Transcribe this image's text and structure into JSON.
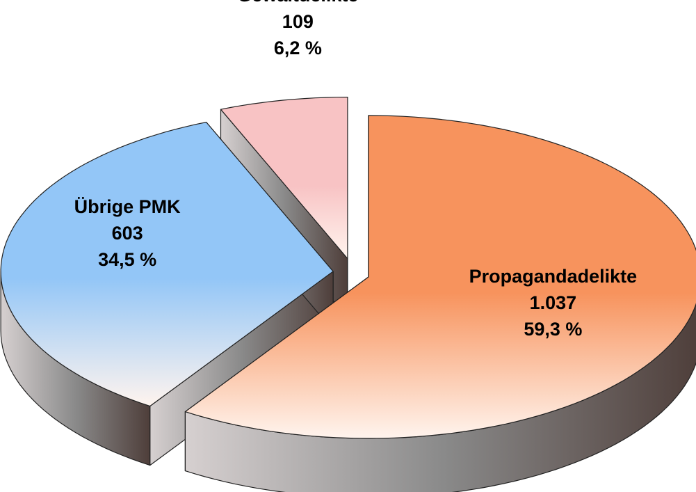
{
  "chart_data": {
    "type": "pie3d",
    "categories": [
      "Propagandadelikte",
      "Übrige PMK",
      "Gewaltdelikte"
    ],
    "values": [
      1037,
      603,
      109
    ],
    "value_labels": [
      "1.037",
      "603",
      "109"
    ],
    "percentages": [
      59.3,
      34.5,
      6.2
    ],
    "percentage_labels": [
      "59,3 %",
      "34,5 %",
      "6,2 %"
    ],
    "colors": [
      "#f7935d",
      "#93c6f7",
      "#f8c3c4"
    ]
  }
}
